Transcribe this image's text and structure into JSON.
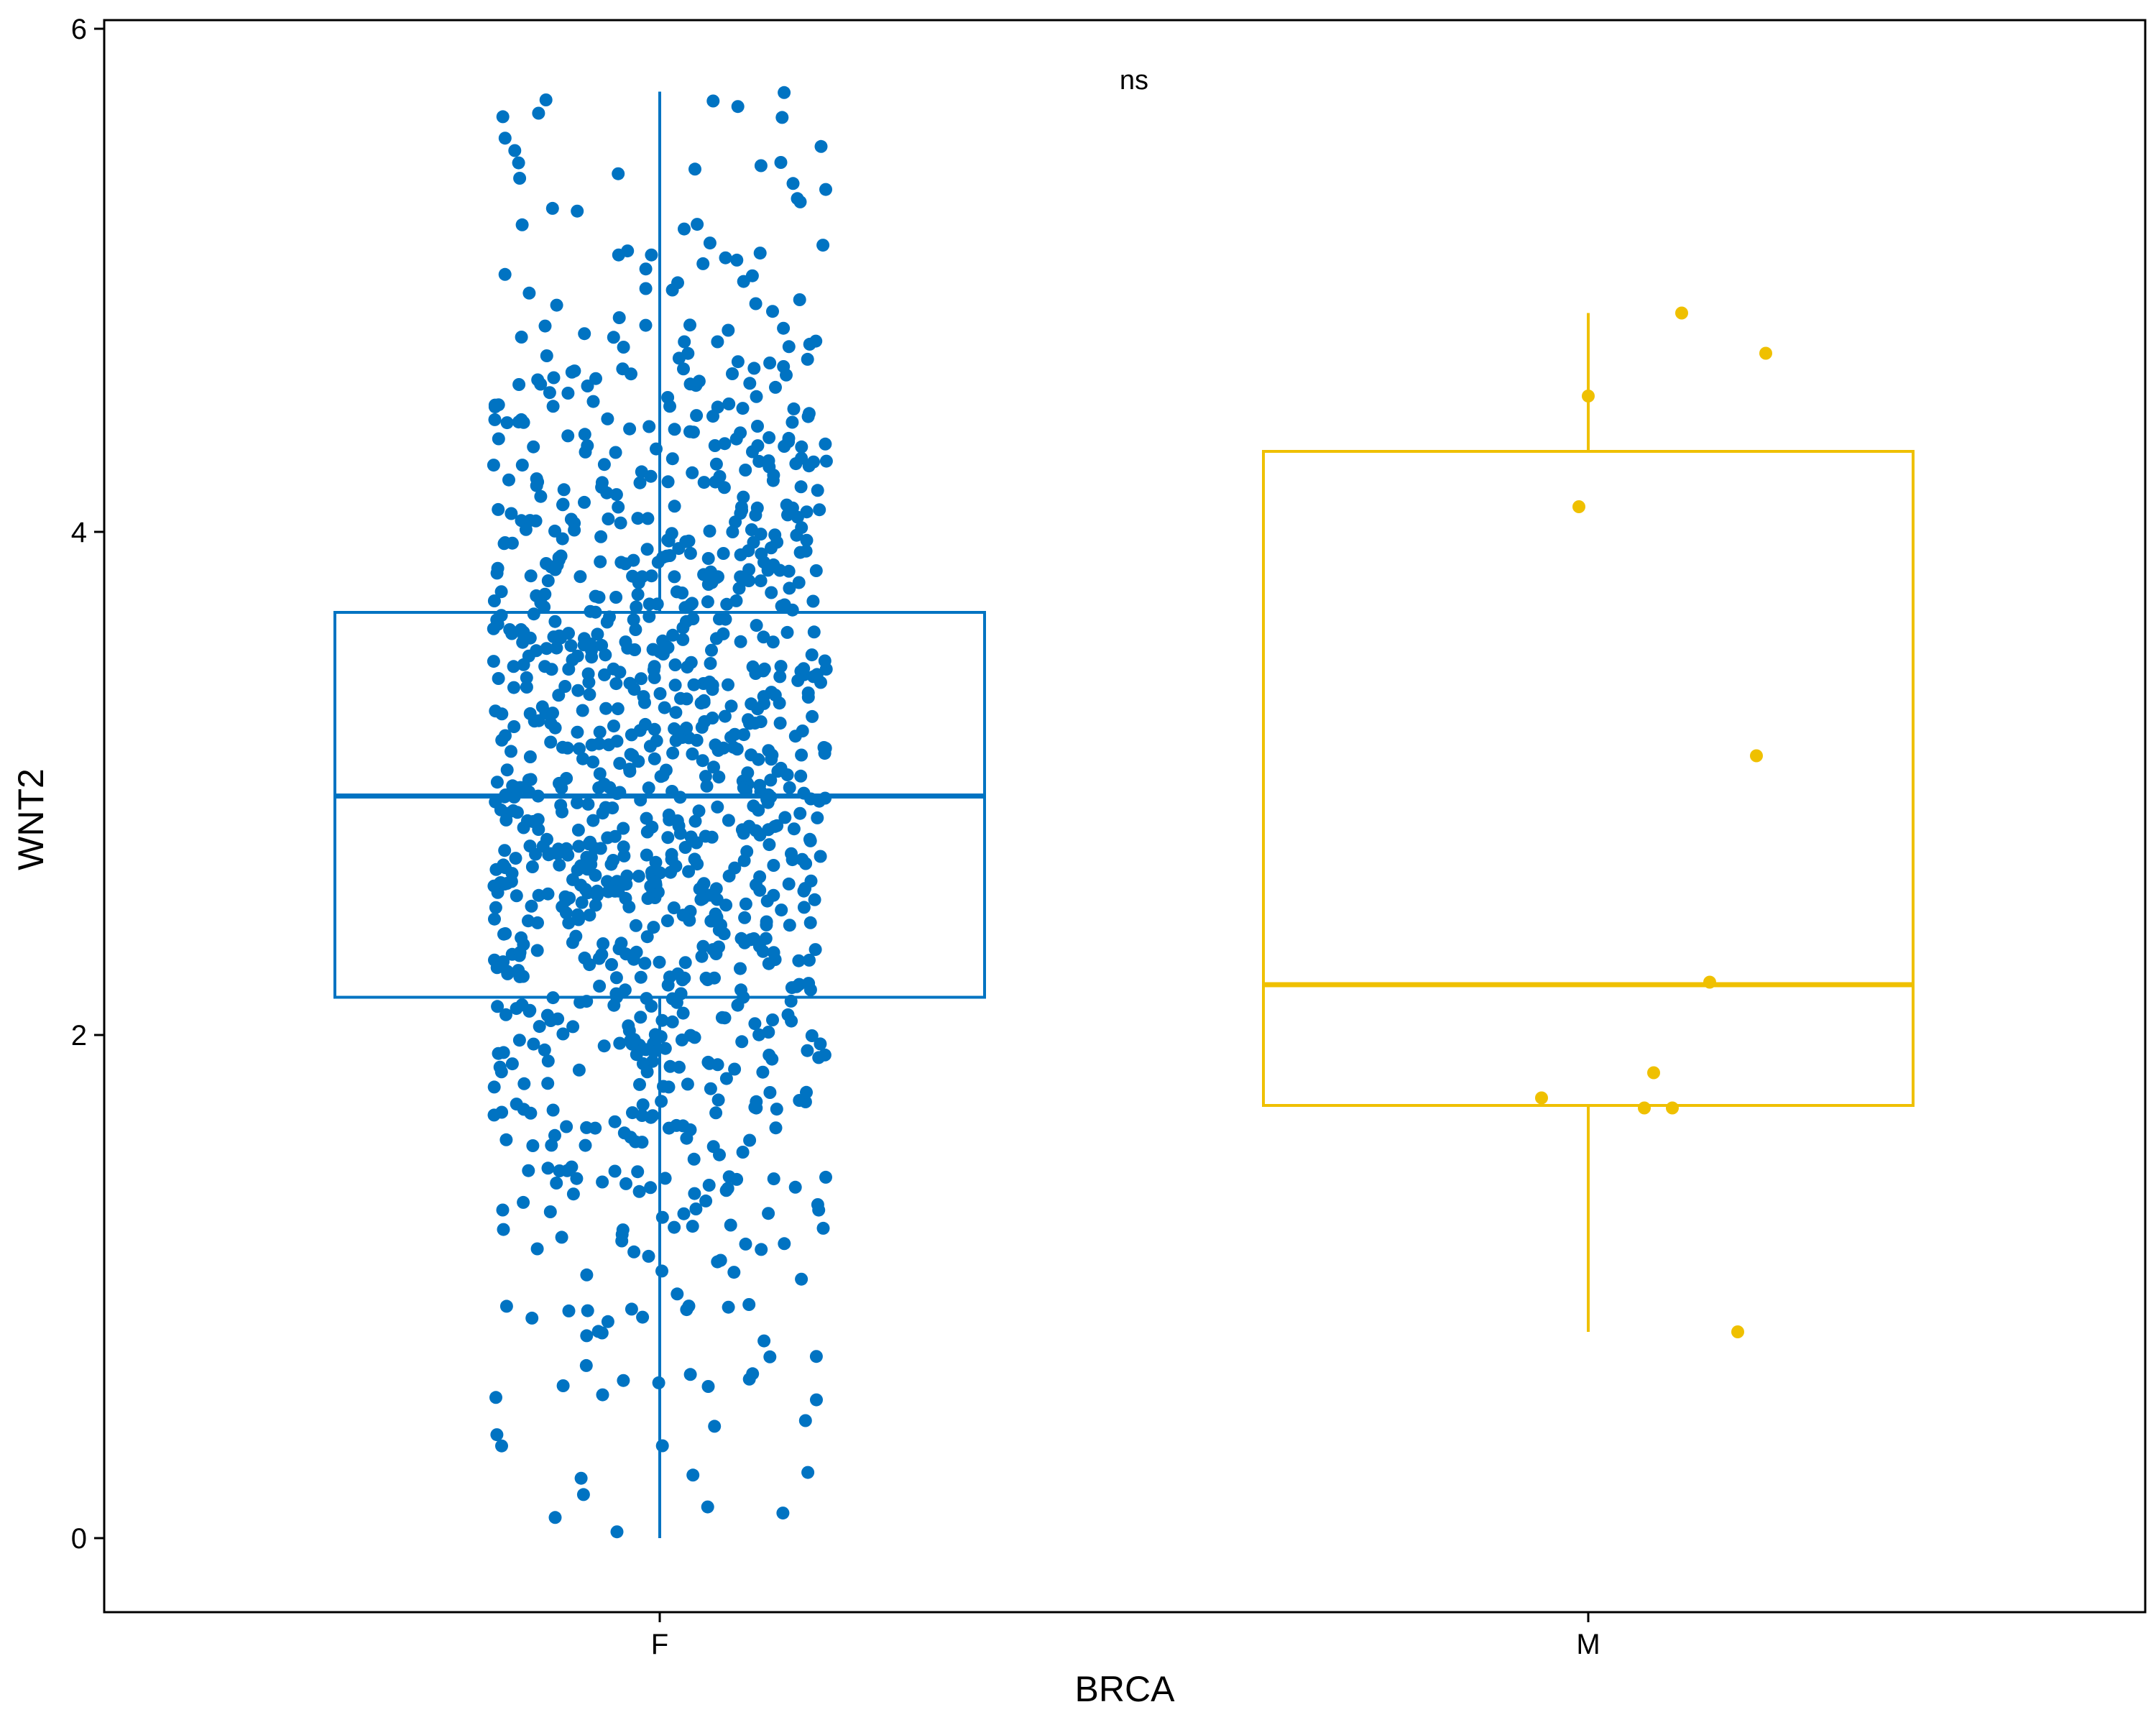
{
  "chart_data": {
    "type": "boxplot",
    "xlabel": "BRCA",
    "ylabel": "WNT2",
    "categories": [
      "F",
      "M"
    ],
    "yticks": [
      0,
      2,
      4,
      6
    ],
    "ylim": [
      -0.28,
      6.05
    ],
    "annotation": "ns",
    "colors": {
      "F": "#0073C2",
      "M": "#EFC000"
    },
    "boxes": [
      {
        "group": "F",
        "whisker_low": 0.0,
        "q1": 2.15,
        "median": 2.95,
        "q3": 3.68,
        "whisker_high": 5.75
      },
      {
        "group": "M",
        "whisker_low": 0.82,
        "q1": 1.72,
        "median": 2.2,
        "q3": 4.32,
        "whisker_high": 4.87
      }
    ],
    "points_M": [
      {
        "x_offset": 0.1,
        "y": 4.87
      },
      {
        "x_offset": 0.19,
        "y": 4.71
      },
      {
        "x_offset": 0.0,
        "y": 4.54
      },
      {
        "x_offset": -0.01,
        "y": 4.1
      },
      {
        "x_offset": 0.18,
        "y": 3.11
      },
      {
        "x_offset": 0.13,
        "y": 2.21
      },
      {
        "x_offset": 0.07,
        "y": 1.85
      },
      {
        "x_offset": -0.05,
        "y": 1.75
      },
      {
        "x_offset": 0.06,
        "y": 1.71
      },
      {
        "x_offset": 0.09,
        "y": 1.71
      },
      {
        "x_offset": 0.16,
        "y": 0.82
      }
    ],
    "points_F_n": 1100
  }
}
